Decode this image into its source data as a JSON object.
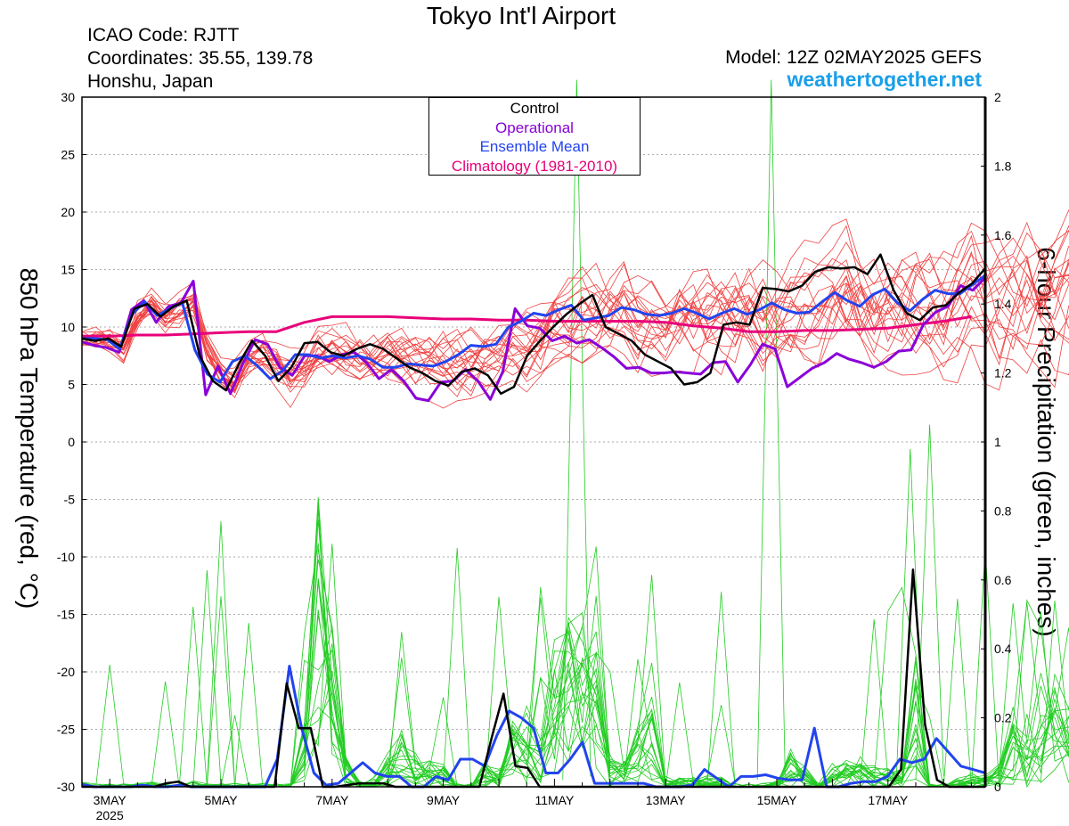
{
  "header": {
    "title": "Tokyo Int'l Airport",
    "icao": "ICAO Code: RJTT",
    "coordinates": "Coordinates: 35.55, 139.78",
    "region": "Honshu, Japan",
    "model": "Model: 12Z 02MAY2025 GEFS",
    "site": "weathertogether.net"
  },
  "chart_data": {
    "type": "line",
    "title": "Tokyo Int'l Airport",
    "xlabel": "",
    "ylabel": "850 hPa Temperature (red, °C)",
    "y2label": "6-hour Precipitation (green, inches)",
    "ylim": [
      -30,
      30
    ],
    "y2lim": [
      0,
      2
    ],
    "grid": true,
    "legend_position": "top-center",
    "x_units": "days since 12Z 02MAY2025",
    "xlim": [
      0,
      16.25
    ],
    "x_tick_labels": [
      {
        "x": 0.5,
        "label": "3MAY",
        "sub": "2025"
      },
      {
        "x": 2.5,
        "label": "5MAY"
      },
      {
        "x": 4.5,
        "label": "7MAY"
      },
      {
        "x": 6.5,
        "label": "9MAY"
      },
      {
        "x": 8.5,
        "label": "11MAY"
      },
      {
        "x": 10.5,
        "label": "13MAY"
      },
      {
        "x": 12.5,
        "label": "15MAY"
      },
      {
        "x": 14.5,
        "label": "17MAY"
      }
    ],
    "y_ticks": [
      30,
      25,
      20,
      15,
      10,
      5,
      0,
      -5,
      -10,
      -15,
      -20,
      -25,
      -30
    ],
    "y2_ticks": [
      "2",
      "1.8",
      "1.6",
      "1.4",
      "1.2",
      "1",
      "0.8",
      "0.6",
      "0.4",
      "0.2",
      "0"
    ],
    "colors": {
      "control": "#000000",
      "operational": "#8a00d8",
      "mean": "#2244ee",
      "climatology": "#e8007a",
      "members_temp": "#f04040",
      "members_precip": "#22cc22"
    },
    "legend": [
      "Control",
      "Operational",
      "Ensemble Mean",
      "Climatology (1981-2010)"
    ],
    "series": [
      {
        "name": "Control",
        "axis": "temp",
        "values": [
          9,
          8.8,
          9,
          8.3,
          11.6,
          12,
          10.9,
          11.8,
          12.3,
          7.5,
          5.3,
          4.5,
          6.8,
          8.8,
          7.5,
          5.3,
          6.5,
          8.6,
          8.7,
          7.8,
          7.5,
          8.1,
          8.5,
          8.1,
          7.3,
          6.5,
          6,
          5.3,
          4.9,
          6.1,
          6.4,
          5.8,
          4.2,
          4.8,
          7.5,
          8.8,
          10,
          11.1,
          12,
          12.8,
          10,
          9.4,
          8.8,
          7.6,
          7,
          6.4,
          5,
          5.2,
          6,
          10.2,
          10.4,
          10.2,
          13.4,
          13.3,
          13.1,
          13.6,
          14.8,
          15.2,
          15.1,
          15.2,
          14.6,
          16.3,
          13.2,
          11.2,
          10.6,
          11.7,
          11.9,
          13,
          13.8,
          15.1
        ]
      },
      {
        "name": "Operational",
        "axis": "temp",
        "values": [
          8.7,
          8.4,
          8.2,
          7.8,
          11.5,
          12.3,
          10.4,
          11.8,
          12.1,
          14,
          4.1,
          6.6,
          4.2,
          6.8,
          8.9,
          8.5,
          6.5,
          5.8,
          7.5,
          7.5,
          7,
          7.6,
          7.8,
          6.9,
          5.5,
          6.3,
          5.3,
          3.8,
          3.6,
          5.2,
          5.3,
          6.3,
          5.3,
          3.7,
          6.1,
          11.6,
          10.1,
          9.9,
          8.8,
          9.2,
          8.6,
          8.9,
          8.2,
          7.4,
          6.4,
          6.5,
          6,
          6,
          6.1,
          6,
          5.9,
          6.9,
          7,
          5.2,
          6.7,
          8.5,
          8.1,
          4.8,
          5.6,
          6.4,
          6.9,
          7.7,
          7.2,
          6.9,
          6.5,
          7,
          7.9,
          8,
          10.2,
          11.3,
          11.8,
          13.6,
          13.2,
          14.3
        ]
      },
      {
        "name": "Ensemble Mean",
        "axis": "temp",
        "values": [
          9,
          9,
          8.9,
          8.1,
          11.1,
          12.2,
          11,
          11.6,
          12.1,
          8,
          5.9,
          5.2,
          7,
          7.5,
          6.6,
          5.5,
          6.2,
          7.6,
          7.6,
          7.3,
          7.5,
          7.3,
          7.5,
          7.2,
          6.5,
          6.5,
          6.8,
          6.7,
          6.6,
          7,
          7.6,
          8.4,
          8.3,
          8.5,
          10,
          10.5,
          11.2,
          11,
          11.5,
          11.9,
          10.6,
          10.8,
          11,
          11.7,
          11.5,
          11.1,
          11,
          11.2,
          11.6,
          11.2,
          10.7,
          11.2,
          11.6,
          11.1,
          11.5,
          12.1,
          11.5,
          11.2,
          11.3,
          12.2,
          13,
          12.3,
          11.8,
          12.8,
          13.3,
          12.1,
          11.4,
          12.4,
          13.2,
          12.9,
          12.9,
          13.7,
          14.5
        ]
      },
      {
        "name": "Climatology (1981-2010)",
        "axis": "temp",
        "values": [
          9.2,
          9.2,
          9.3,
          9.3,
          9.4,
          9.5,
          9.6,
          9.6,
          10.4,
          10.9,
          10.9,
          10.9,
          10.8,
          10.7,
          10.7,
          10.6,
          10.6,
          10.5,
          10.5,
          10.5,
          10.5,
          10.4,
          10.1,
          9.9,
          9.6,
          9.6,
          9.7,
          9.7,
          9.8,
          9.9,
          10.2,
          10.5,
          10.9
        ]
      },
      {
        "name": "Control precip",
        "axis": "precip",
        "values": [
          0,
          0,
          0,
          0,
          0,
          0,
          0,
          0.01,
          0.015,
          0,
          0,
          0,
          0,
          0,
          0,
          0,
          0,
          0.3,
          0.17,
          0.17,
          0,
          0,
          0.005,
          0.01,
          0.01,
          0.01,
          0,
          0,
          0,
          0,
          0,
          0,
          0,
          0,
          0.14,
          0.27,
          0.06,
          0.055,
          0,
          0,
          0,
          0,
          0,
          0,
          0,
          0,
          0,
          0,
          0,
          0,
          0,
          0,
          0,
          0,
          0,
          0,
          0,
          0,
          0,
          0,
          0,
          0,
          0,
          0,
          0,
          0,
          0,
          0,
          0.05,
          0.63,
          0.18,
          0.02,
          0,
          0,
          0,
          0
        ]
      },
      {
        "name": "Ensemble Mean precip",
        "axis": "precip",
        "values": [
          0.007,
          0,
          0,
          0,
          0,
          0.005,
          0,
          0,
          0.005,
          0,
          0,
          0,
          0,
          0,
          0,
          0,
          0.08,
          0.35,
          0.17,
          0.04,
          0.005,
          0.01,
          0.04,
          0.07,
          0.04,
          0.03,
          0.03,
          0,
          0,
          0.03,
          0.02,
          0.08,
          0.08,
          0.06,
          0.15,
          0.22,
          0.2,
          0.17,
          0.04,
          0.04,
          0.08,
          0.13,
          0.01,
          0.01,
          0.01,
          0.01,
          0.01,
          0,
          0,
          0,
          0.005,
          0.05,
          0.025,
          0,
          0.03,
          0.03,
          0.035,
          0.025,
          0.02,
          0.02,
          0.17,
          0,
          0,
          0.01,
          0.015,
          0.015,
          0.03,
          0.08,
          0.07,
          0.08,
          0.14,
          0.1,
          0.06,
          0.05,
          0.04
        ]
      }
    ]
  }
}
